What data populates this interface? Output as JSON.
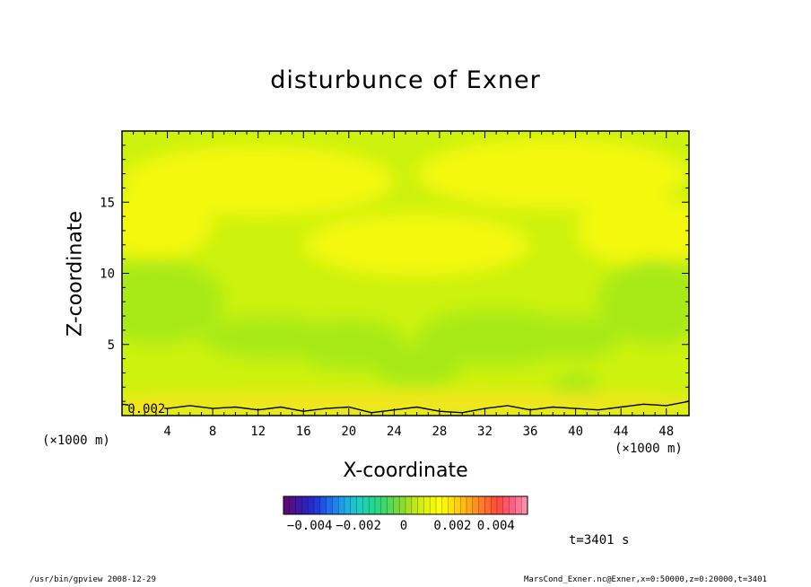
{
  "chart_data": {
    "type": "heatmap",
    "title": "disturbunce of Exner",
    "xlabel": "X-coordinate",
    "ylabel": "Z-coordinate",
    "x_unit_left": "(×1000 m)",
    "x_unit_right": "(×1000 m)",
    "xlim": [
      0,
      50
    ],
    "ylim": [
      0,
      20
    ],
    "x_ticks": [
      4,
      8,
      12,
      16,
      20,
      24,
      28,
      32,
      36,
      40,
      44,
      48
    ],
    "x_tick_labels": [
      "4",
      "8",
      "12",
      "16",
      "20",
      "24",
      "28",
      "32",
      "36",
      "40",
      "44",
      "48"
    ],
    "y_ticks": [
      5,
      10,
      15
    ],
    "y_tick_labels": [
      "5",
      "10",
      "15"
    ],
    "contour_label": "0.002",
    "contour_level": 0.002,
    "colorbar": {
      "min": -0.005,
      "max": 0.005,
      "tick_labels": [
        "−0.004",
        "−0.002",
        "0",
        "0.002",
        "0.004"
      ],
      "colors": [
        "#5b0a7a",
        "#3b1aa8",
        "#1f2fd6",
        "#1f6ae8",
        "#1fa0e8",
        "#1fc9c9",
        "#1fd69a",
        "#3ed86a",
        "#7ad83a",
        "#b7e61a",
        "#e6f20a",
        "#ffff0a",
        "#ffd80a",
        "#ffaa1a",
        "#ff7a2a",
        "#ff4a3a",
        "#ff5a7a",
        "#ff8aaa"
      ]
    },
    "field_colors": {
      "low": "#a8ea12",
      "mid": "#ccf20e",
      "high": "#f4f80c",
      "near_surface": "#f2e61a"
    },
    "contour_x": [
      0,
      2,
      4,
      6,
      8,
      10,
      12,
      14,
      16,
      18,
      20,
      22,
      24,
      26,
      28,
      30,
      32,
      34,
      36,
      38,
      40,
      42,
      44,
      46,
      48,
      50
    ],
    "contour_z": [
      0.8,
      0.6,
      0.5,
      0.7,
      0.5,
      0.6,
      0.4,
      0.6,
      0.3,
      0.5,
      0.6,
      0.2,
      0.4,
      0.6,
      0.3,
      0.2,
      0.5,
      0.7,
      0.4,
      0.6,
      0.5,
      0.4,
      0.6,
      0.8,
      0.7,
      1.0
    ]
  },
  "time_label": "t=3401 s",
  "footer_left": "/usr/bin/gpview   2008-12-29",
  "footer_right": "MarsCond_Exner.nc@Exner,x=0:50000,z=0:20000,t=3401"
}
